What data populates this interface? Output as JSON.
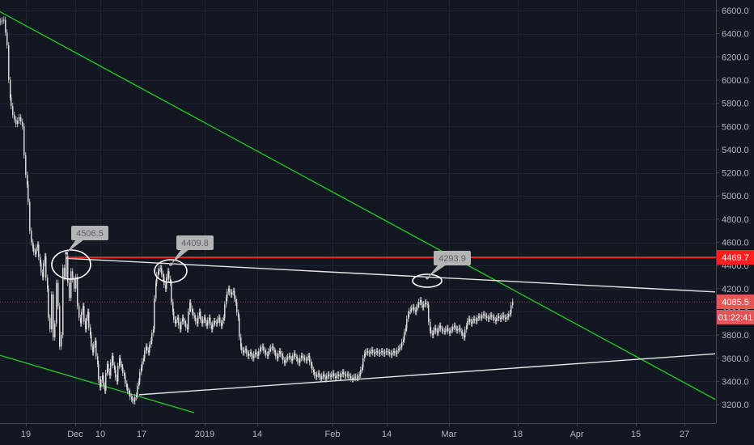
{
  "chart_data": {
    "type": "candlestick",
    "title": "",
    "ylim": [
      3130,
      6680
    ],
    "price_ticks": [
      6600.0,
      6400.0,
      6200.0,
      6000.0,
      5800.0,
      5600.0,
      5400.0,
      5200.0,
      5000.0,
      4800.0,
      4600.0,
      4400.0,
      4200.0,
      4000.0,
      3800.0,
      3600.0,
      3400.0,
      3200.0
    ],
    "price_tick_labels": [
      "6600.0",
      "6400.0",
      "6200.0",
      "6000.0",
      "5800.0",
      "5600.0",
      "5400.0",
      "5200.0",
      "5000.0",
      "4800.0",
      "4600.0",
      "4400.0",
      "4200.0",
      "4000.0",
      "3800.0",
      "3600.0",
      "3400.0",
      "3200.0"
    ],
    "time_ticks": [
      "19",
      "Dec",
      "10",
      "17",
      "2019",
      "14",
      "Feb",
      "14",
      "Mar",
      "18",
      "Apr",
      "15",
      "27"
    ],
    "grid": true,
    "colors": {
      "up": "#d8d8d8",
      "down": "#d8d8d8",
      "trend_green": "#22c322",
      "trend_white": "#e6e6e6",
      "resistance": "#ff1e1e",
      "price_tag": "#e55757",
      "timer_tag": "#e05555"
    },
    "price_path": [
      [
        0,
        6500
      ],
      [
        6,
        6520
      ],
      [
        10,
        6300
      ],
      [
        13,
        5850
      ],
      [
        17,
        5700
      ],
      [
        21,
        5620
      ],
      [
        25,
        5680
      ],
      [
        29,
        5600
      ],
      [
        31,
        5350
      ],
      [
        34,
        5100
      ],
      [
        36,
        4950
      ],
      [
        38,
        4700
      ],
      [
        41,
        4550
      ],
      [
        44,
        4500
      ],
      [
        47,
        4580
      ],
      [
        50,
        4420
      ],
      [
        53,
        4300
      ],
      [
        56,
        4480
      ],
      [
        59,
        4200
      ],
      [
        61,
        3950
      ],
      [
        63,
        3850
      ],
      [
        65,
        4150
      ],
      [
        67,
        3780
      ],
      [
        69,
        3900
      ],
      [
        71,
        4250
      ],
      [
        73,
        4050
      ],
      [
        75,
        3700
      ],
      [
        77,
        3800
      ],
      [
        79,
        4380
      ],
      [
        81,
        4300
      ],
      [
        83,
        4480
      ],
      [
        85,
        4250
      ],
      [
        87,
        4120
      ],
      [
        89,
        4350
      ],
      [
        91,
        4280
      ],
      [
        93,
        4200
      ],
      [
        95,
        4300
      ],
      [
        97,
        4050
      ],
      [
        100,
        3900
      ],
      [
        103,
        4050
      ],
      [
        106,
        3850
      ],
      [
        109,
        4000
      ],
      [
        112,
        3800
      ],
      [
        115,
        3650
      ],
      [
        118,
        3750
      ],
      [
        121,
        3550
      ],
      [
        124,
        3350
      ],
      [
        127,
        3450
      ],
      [
        130,
        3320
      ],
      [
        133,
        3550
      ],
      [
        136,
        3450
      ],
      [
        139,
        3620
      ],
      [
        142,
        3500
      ],
      [
        145,
        3400
      ],
      [
        148,
        3600
      ],
      [
        151,
        3520
      ],
      [
        154,
        3450
      ],
      [
        157,
        3350
      ],
      [
        160,
        3300
      ],
      [
        163,
        3250
      ],
      [
        166,
        3230
      ],
      [
        169,
        3280
      ],
      [
        172,
        3400
      ],
      [
        175,
        3520
      ],
      [
        178,
        3600
      ],
      [
        181,
        3700
      ],
      [
        184,
        3650
      ],
      [
        187,
        3750
      ],
      [
        190,
        3850
      ],
      [
        193,
        4250
      ],
      [
        196,
        4350
      ],
      [
        199,
        4380
      ],
      [
        202,
        4300
      ],
      [
        205,
        4200
      ],
      [
        208,
        4350
      ],
      [
        211,
        4250
      ],
      [
        214,
        4000
      ],
      [
        217,
        3900
      ],
      [
        220,
        3950
      ],
      [
        223,
        3850
      ],
      [
        226,
        3950
      ],
      [
        229,
        3900
      ],
      [
        232,
        3850
      ],
      [
        235,
        4080
      ],
      [
        238,
        4000
      ],
      [
        241,
        3950
      ],
      [
        244,
        3900
      ],
      [
        247,
        4000
      ],
      [
        250,
        3900
      ],
      [
        253,
        3950
      ],
      [
        256,
        3880
      ],
      [
        259,
        3950
      ],
      [
        262,
        3850
      ],
      [
        265,
        3920
      ],
      [
        268,
        3900
      ],
      [
        271,
        3950
      ],
      [
        274,
        3880
      ],
      [
        277,
        3950
      ],
      [
        280,
        4120
      ],
      [
        283,
        4200
      ],
      [
        286,
        4150
      ],
      [
        289,
        4180
      ],
      [
        292,
        4080
      ],
      [
        295,
        3950
      ],
      [
        298,
        3700
      ],
      [
        301,
        3650
      ],
      [
        304,
        3680
      ],
      [
        307,
        3620
      ],
      [
        310,
        3650
      ],
      [
        313,
        3600
      ],
      [
        316,
        3650
      ],
      [
        319,
        3620
      ],
      [
        322,
        3680
      ],
      [
        325,
        3700
      ],
      [
        328,
        3650
      ],
      [
        331,
        3620
      ],
      [
        334,
        3680
      ],
      [
        337,
        3700
      ],
      [
        340,
        3650
      ],
      [
        343,
        3600
      ],
      [
        346,
        3660
      ],
      [
        349,
        3620
      ],
      [
        352,
        3560
      ],
      [
        355,
        3600
      ],
      [
        358,
        3620
      ],
      [
        361,
        3580
      ],
      [
        364,
        3640
      ],
      [
        367,
        3600
      ],
      [
        370,
        3560
      ],
      [
        373,
        3620
      ],
      [
        376,
        3600
      ],
      [
        379,
        3580
      ],
      [
        382,
        3620
      ],
      [
        385,
        3540
      ],
      [
        388,
        3480
      ],
      [
        391,
        3440
      ],
      [
        394,
        3470
      ],
      [
        397,
        3420
      ],
      [
        400,
        3460
      ],
      [
        403,
        3420
      ],
      [
        406,
        3460
      ],
      [
        409,
        3440
      ],
      [
        412,
        3470
      ],
      [
        415,
        3430
      ],
      [
        418,
        3460
      ],
      [
        421,
        3440
      ],
      [
        424,
        3480
      ],
      [
        427,
        3450
      ],
      [
        430,
        3460
      ],
      [
        433,
        3440
      ],
      [
        436,
        3420
      ],
      [
        439,
        3440
      ],
      [
        442,
        3430
      ],
      [
        445,
        3460
      ],
      [
        448,
        3520
      ],
      [
        451,
        3640
      ],
      [
        454,
        3660
      ],
      [
        457,
        3640
      ],
      [
        460,
        3670
      ],
      [
        463,
        3640
      ],
      [
        466,
        3660
      ],
      [
        469,
        3640
      ],
      [
        472,
        3660
      ],
      [
        475,
        3640
      ],
      [
        478,
        3660
      ],
      [
        481,
        3650
      ],
      [
        484,
        3630
      ],
      [
        487,
        3660
      ],
      [
        490,
        3640
      ],
      [
        493,
        3680
      ],
      [
        496,
        3700
      ],
      [
        499,
        3760
      ],
      [
        502,
        3860
      ],
      [
        505,
        3980
      ],
      [
        508,
        4020
      ],
      [
        511,
        4040
      ],
      [
        514,
        4000
      ],
      [
        517,
        4060
      ],
      [
        520,
        4100
      ],
      [
        523,
        4040
      ],
      [
        526,
        4080
      ],
      [
        529,
        4060
      ],
      [
        532,
        3840
      ],
      [
        535,
        3800
      ],
      [
        538,
        3860
      ],
      [
        541,
        3820
      ],
      [
        544,
        3880
      ],
      [
        547,
        3840
      ],
      [
        550,
        3830
      ],
      [
        553,
        3860
      ],
      [
        556,
        3820
      ],
      [
        559,
        3850
      ],
      [
        562,
        3880
      ],
      [
        565,
        3840
      ],
      [
        568,
        3860
      ],
      [
        571,
        3820
      ],
      [
        574,
        3780
      ],
      [
        577,
        3880
      ],
      [
        580,
        3940
      ],
      [
        583,
        3900
      ],
      [
        586,
        3940
      ],
      [
        589,
        3920
      ],
      [
        592,
        3960
      ],
      [
        595,
        3950
      ],
      [
        598,
        3980
      ],
      [
        601,
        3960
      ],
      [
        604,
        3940
      ],
      [
        607,
        3970
      ],
      [
        610,
        3950
      ],
      [
        613,
        3920
      ],
      [
        616,
        3960
      ],
      [
        619,
        3940
      ],
      [
        622,
        3970
      ],
      [
        625,
        3940
      ],
      [
        628,
        3960
      ],
      [
        631,
        3990
      ],
      [
        634,
        4090
      ]
    ],
    "annotations": [
      {
        "label": "4506.5",
        "price": 4506.5
      },
      {
        "label": "4409.8",
        "price": 4409.8
      },
      {
        "label": "4293.9",
        "price": 4293.9
      }
    ],
    "horizontal_line": {
      "price": 4469.7,
      "label": "4469.7"
    },
    "last_price": {
      "price": 4085.5,
      "label": "4085.5",
      "countdown": "01:22:41"
    },
    "trendlines": [
      {
        "name": "green-down-upper",
        "color": "green",
        "p1": [
          0,
          6590
        ],
        "p2": [
          884,
          3245
        ]
      },
      {
        "name": "green-down-lower",
        "color": "green",
        "p1": [
          0,
          3625
        ],
        "p2": [
          240,
          3130
        ]
      },
      {
        "name": "white-descending",
        "color": "white",
        "p1": [
          82,
          4462
        ],
        "p2": [
          884,
          4172
        ]
      },
      {
        "name": "white-ascending",
        "color": "white",
        "p1": [
          172,
          3285
        ],
        "p2": [
          884,
          3638
        ]
      }
    ]
  }
}
